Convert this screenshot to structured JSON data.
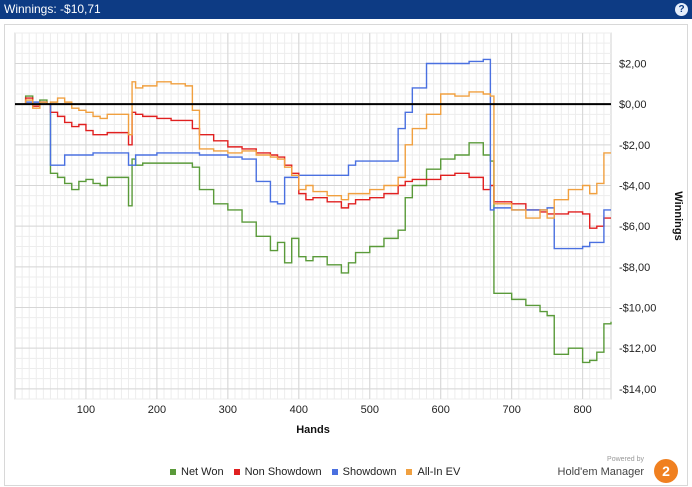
{
  "window": {
    "title": "Winnings: -$10,71"
  },
  "chart_data": {
    "type": "line",
    "xlabel": "Hands",
    "ylabel": "Winnings",
    "xlim": [
      0,
      840
    ],
    "ylim": [
      -14.5,
      3.5
    ],
    "x_ticks": [
      100,
      200,
      300,
      400,
      500,
      600,
      700,
      800
    ],
    "y_ticks": [
      2,
      0,
      -2,
      -4,
      -6,
      -8,
      -10,
      -12,
      -14
    ],
    "y_tick_labels": [
      "$2,00",
      "$0,00",
      "-$2,00",
      "-$4,00",
      "-$6,00",
      "-$8,00",
      "-$10,00",
      "-$12,00",
      "-$14,00"
    ],
    "grid": true,
    "legend_position": "bottom",
    "series": [
      {
        "name": "Net Won",
        "color": "#5a9a3a",
        "x": [
          0,
          15,
          25,
          35,
          45,
          50,
          60,
          70,
          80,
          90,
          100,
          110,
          120,
          130,
          160,
          165,
          170,
          180,
          200,
          220,
          240,
          250,
          260,
          280,
          300,
          320,
          340,
          360,
          370,
          380,
          390,
          400,
          410,
          420,
          440,
          460,
          470,
          480,
          500,
          520,
          540,
          550,
          560,
          580,
          600,
          620,
          640,
          660,
          670,
          675,
          700,
          720,
          740,
          750,
          760,
          780,
          800,
          810,
          820,
          830,
          840
        ],
        "y": [
          0,
          0.4,
          0,
          0.2,
          0,
          -3.4,
          -3.6,
          -3.9,
          -4.2,
          -3.8,
          -3.7,
          -3.9,
          -4.0,
          -3.6,
          -5.0,
          -2.7,
          -3.0,
          -2.9,
          -2.9,
          -2.9,
          -2.9,
          -3.1,
          -4.2,
          -4.9,
          -5.2,
          -5.8,
          -6.5,
          -7.2,
          -6.8,
          -7.8,
          -6.6,
          -7.5,
          -7.7,
          -7.5,
          -7.9,
          -8.3,
          -7.8,
          -7.3,
          -7.0,
          -6.6,
          -6.2,
          -4.6,
          -4.0,
          -3.2,
          -2.7,
          -2.5,
          -1.9,
          -2.5,
          -2.8,
          -9.3,
          -9.6,
          -9.9,
          -10.2,
          -10.4,
          -12.3,
          -12.0,
          -12.7,
          -12.6,
          -12.2,
          -10.8,
          -10.7
        ]
      },
      {
        "name": "Non Showdown",
        "color": "#e02020",
        "x": [
          0,
          15,
          25,
          35,
          45,
          50,
          60,
          70,
          80,
          90,
          100,
          110,
          120,
          130,
          160,
          165,
          170,
          180,
          200,
          220,
          240,
          250,
          260,
          280,
          300,
          320,
          340,
          360,
          370,
          380,
          390,
          400,
          410,
          420,
          440,
          460,
          470,
          480,
          500,
          520,
          540,
          550,
          560,
          580,
          600,
          620,
          640,
          660,
          670,
          675,
          700,
          720,
          740,
          750,
          760,
          780,
          800,
          810,
          820,
          830,
          840
        ],
        "y": [
          0,
          0.3,
          -0.1,
          0.1,
          0,
          -0.4,
          -0.6,
          -0.9,
          -1.1,
          -1.0,
          -1.3,
          -1.5,
          -1.5,
          -1.4,
          -2.0,
          -0.4,
          -0.5,
          -0.6,
          -0.7,
          -0.8,
          -0.8,
          -1.2,
          -1.5,
          -1.8,
          -2.1,
          -2.2,
          -2.4,
          -2.5,
          -2.6,
          -3.0,
          -3.4,
          -4.4,
          -4.7,
          -4.6,
          -4.8,
          -5.1,
          -4.9,
          -4.7,
          -4.6,
          -4.4,
          -4.0,
          -3.8,
          -3.7,
          -3.7,
          -3.5,
          -3.4,
          -3.6,
          -4.2,
          -4.0,
          -4.8,
          -4.9,
          -5.2,
          -5.3,
          -5.4,
          -5.4,
          -5.3,
          -5.4,
          -6.1,
          -6.0,
          -5.6,
          -5.6
        ]
      },
      {
        "name": "Showdown",
        "color": "#4a70e0",
        "x": [
          0,
          15,
          25,
          35,
          45,
          50,
          60,
          70,
          80,
          90,
          100,
          110,
          120,
          130,
          160,
          165,
          170,
          180,
          200,
          220,
          240,
          250,
          260,
          280,
          300,
          320,
          340,
          360,
          370,
          380,
          390,
          400,
          410,
          420,
          440,
          460,
          470,
          480,
          500,
          520,
          540,
          550,
          560,
          580,
          600,
          620,
          640,
          660,
          670,
          675,
          700,
          720,
          740,
          750,
          760,
          780,
          800,
          810,
          820,
          830,
          840
        ],
        "y": [
          0,
          0.1,
          0.1,
          0.1,
          0,
          -3.0,
          -3.0,
          -2.5,
          -2.5,
          -2.5,
          -2.5,
          -2.4,
          -2.4,
          -2.4,
          -3.0,
          -3.0,
          -2.5,
          -2.5,
          -2.4,
          -2.4,
          -2.4,
          -2.4,
          -2.5,
          -2.5,
          -2.6,
          -2.7,
          -3.8,
          -4.8,
          -4.9,
          -3.6,
          -3.6,
          -3.5,
          -3.5,
          -3.5,
          -3.5,
          -3.5,
          -3.0,
          -2.8,
          -2.8,
          -2.8,
          -1.2,
          -0.4,
          0.8,
          2.0,
          2.0,
          2.0,
          2.1,
          2.2,
          -5.2,
          -5.1,
          -5.2,
          -5.2,
          -5.2,
          -5.1,
          -7.1,
          -7.1,
          -7.0,
          -6.8,
          -6.8,
          -5.2,
          -5.2
        ]
      },
      {
        "name": "All-In EV",
        "color": "#f0a040",
        "x": [
          0,
          15,
          25,
          35,
          45,
          50,
          60,
          70,
          80,
          90,
          100,
          110,
          120,
          130,
          160,
          165,
          170,
          180,
          200,
          220,
          240,
          250,
          260,
          280,
          300,
          320,
          340,
          360,
          370,
          380,
          390,
          400,
          410,
          420,
          440,
          460,
          470,
          480,
          500,
          520,
          540,
          550,
          560,
          580,
          600,
          620,
          640,
          660,
          670,
          675,
          700,
          720,
          740,
          750,
          760,
          780,
          800,
          810,
          820,
          830,
          840
        ],
        "y": [
          0,
          0.2,
          -0.2,
          0.1,
          0,
          0.1,
          0.3,
          0.1,
          -0.2,
          -0.3,
          -0.4,
          -0.6,
          -0.7,
          -0.5,
          -1.5,
          1.1,
          0.8,
          0.9,
          1.1,
          1.0,
          0.9,
          -0.3,
          -2.2,
          -2.3,
          -2.4,
          -2.3,
          -2.5,
          -2.6,
          -2.7,
          -3.1,
          -3.5,
          -4.2,
          -4.0,
          -4.3,
          -4.5,
          -4.7,
          -4.4,
          -4.4,
          -4.2,
          -4.0,
          -3.6,
          -2.0,
          -1.2,
          -0.5,
          0.5,
          0.4,
          0.6,
          0.5,
          0.4,
          -4.9,
          -5.2,
          -5.6,
          -5.2,
          -5.6,
          -4.7,
          -4.2,
          -4.0,
          -4.4,
          -3.9,
          -2.4,
          -2.4
        ]
      }
    ],
    "zero_line": 0
  },
  "legend": [
    "Net Won",
    "Non Showdown",
    "Showdown",
    "All-In EV"
  ],
  "branding": {
    "powered_by": "Powered by",
    "name": "Hold'em Manager",
    "logo_text": "2"
  }
}
